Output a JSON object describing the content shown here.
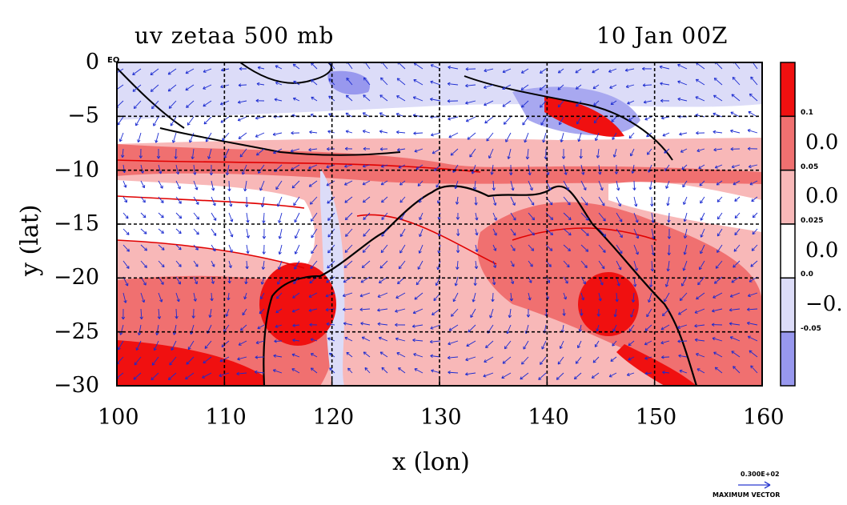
{
  "title_left": "uv zetaa 500 mb",
  "title_right": "10 Jan 00Z",
  "corner_label": "EQ",
  "x_axis": {
    "label": "x (lon)",
    "ticks": [
      "100",
      "110",
      "120",
      "130",
      "140",
      "150",
      "160"
    ],
    "range": [
      100,
      160
    ]
  },
  "y_axis": {
    "label": "y (lat)",
    "ticks": [
      "0",
      "−5",
      "−10",
      "−15",
      "−20",
      "−25",
      "−30"
    ],
    "range": [
      -30,
      0
    ]
  },
  "colorbar": {
    "levels": [
      "0.1",
      "0.05",
      "0.025",
      "0.0",
      "-0.05"
    ],
    "truncated_labels": [
      "0.0",
      "0.0",
      "0.0",
      "−0."
    ],
    "colors": [
      "#f01010",
      "#f07070",
      "#f8b8b8",
      "#ffffff",
      "#dcdcf8",
      "#9898ee"
    ]
  },
  "vector_reference": {
    "value": "0.300E+02",
    "caption": "MAXIMUM VECTOR"
  },
  "map_colors": {
    "strong_positive": "#f01010",
    "positive": "#f07070",
    "weak_positive": "#f8b8b8",
    "weak_negative": "#dcdcf8",
    "negative": "#9898ee",
    "vectors": "#1a2ad0",
    "contour": "#e00000",
    "coastline": "#000000"
  }
}
